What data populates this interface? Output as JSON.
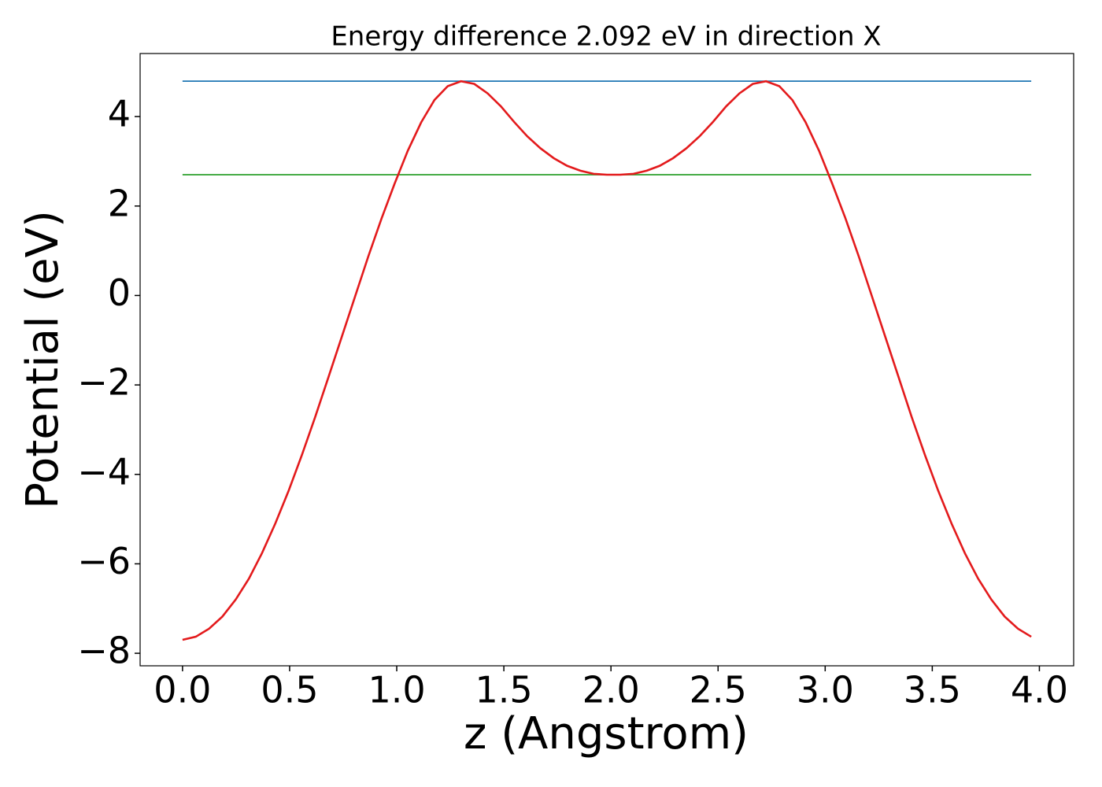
{
  "chart_data": {
    "type": "line",
    "title": "Energy difference 2.092 eV in direction X",
    "x_label": "z (Angstrom)",
    "y_label": "Potential (eV)",
    "xlim": [
      -0.198,
      4.16
    ],
    "ylim": [
      -8.28,
      5.41
    ],
    "xticks": [
      {
        "value": 0,
        "label": "0.0"
      },
      {
        "value": 0.5,
        "label": "0.5"
      },
      {
        "value": 1,
        "label": "1.0"
      },
      {
        "value": 1.5,
        "label": "1.5"
      },
      {
        "value": 2,
        "label": "2.0"
      },
      {
        "value": 2.5,
        "label": "2.5"
      },
      {
        "value": 3,
        "label": "3.0"
      },
      {
        "value": 3.5,
        "label": "3.5"
      },
      {
        "value": 4,
        "label": "4.0"
      }
    ],
    "yticks": [
      {
        "value": -8,
        "label": "−8"
      },
      {
        "value": -6,
        "label": "−6"
      },
      {
        "value": -4,
        "label": "−4"
      },
      {
        "value": -2,
        "label": "−2"
      },
      0,
      2,
      4
    ],
    "grid": false,
    "series": [
      {
        "color": "#1f77b4",
        "x": [
          0,
          3.962
        ],
        "values": [
          4.792,
          4.792
        ]
      },
      {
        "color": "#2ca02c",
        "x": [
          0,
          3.962
        ],
        "values": [
          2.7,
          2.7
        ]
      },
      {
        "color": "#e31a1c",
        "x": [
          0,
          0.062,
          0.124,
          0.186,
          0.248,
          0.31,
          0.371,
          0.433,
          0.495,
          0.557,
          0.619,
          0.681,
          0.743,
          0.805,
          0.867,
          0.929,
          0.99,
          1.052,
          1.114,
          1.176,
          1.238,
          1.3,
          1.362,
          1.424,
          1.486,
          1.548,
          1.609,
          1.671,
          1.733,
          1.795,
          1.857,
          1.919,
          1.981,
          2.043,
          2.105,
          2.167,
          2.228,
          2.29,
          2.352,
          2.414,
          2.476,
          2.538,
          2.6,
          2.662,
          2.724,
          2.786,
          2.847,
          2.909,
          2.971,
          3.033,
          3.095,
          3.157,
          3.219,
          3.281,
          3.343,
          3.404,
          3.466,
          3.528,
          3.59,
          3.652,
          3.714,
          3.776,
          3.838,
          3.9,
          3.962
        ],
        "values": [
          -7.7,
          -7.63,
          -7.45,
          -7.18,
          -6.8,
          -6.33,
          -5.76,
          -5.1,
          -4.37,
          -3.57,
          -2.72,
          -1.83,
          -0.93,
          -0.03,
          0.87,
          1.72,
          2.5,
          3.24,
          3.87,
          4.37,
          4.68,
          4.79,
          4.73,
          4.52,
          4.23,
          3.88,
          3.56,
          3.29,
          3.07,
          2.9,
          2.79,
          2.72,
          2.7,
          2.7,
          2.72,
          2.79,
          2.9,
          3.07,
          3.29,
          3.56,
          3.88,
          4.23,
          4.52,
          4.73,
          4.79,
          4.68,
          4.37,
          3.87,
          3.24,
          2.5,
          1.72,
          0.87,
          -0.03,
          -0.93,
          -1.83,
          -2.72,
          -3.57,
          -4.37,
          -5.1,
          -5.76,
          -6.33,
          -6.8,
          -7.18,
          -7.45,
          -7.63
        ]
      }
    ]
  }
}
